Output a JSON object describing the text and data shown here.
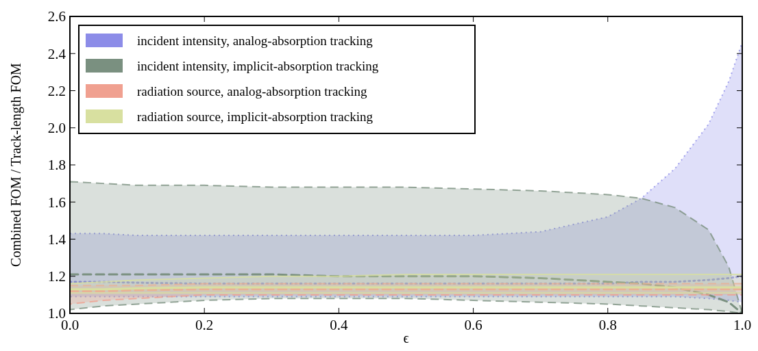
{
  "chart_data": {
    "type": "line",
    "xlabel": "ϵ",
    "ylabel": "Combined FOM / Track-length FOM",
    "x": [
      0,
      0.05,
      0.1,
      0.2,
      0.3,
      0.4,
      0.5,
      0.6,
      0.7,
      0.8,
      0.85,
      0.9,
      0.95,
      0.98,
      1.0
    ],
    "xlim": [
      0,
      1
    ],
    "ylim": [
      1,
      2.6
    ],
    "xticks": [
      {
        "value": 0,
        "label": "0.0"
      },
      0.2,
      0.4,
      0.6,
      0.8,
      {
        "value": 1,
        "label": "1.0"
      }
    ],
    "yticks": [
      {
        "value": 1,
        "label": "1.0"
      },
      1.2,
      1.4,
      1.6,
      1.8,
      {
        "value": 2,
        "label": "2.0"
      },
      2.2,
      2.4,
      2.6
    ],
    "legend": "top left",
    "grid": false,
    "series": [
      {
        "name": "incident intensity, analog-absorption tracking",
        "color": "#8c8ce8",
        "line_style": "dotted",
        "values": [
          1.17,
          1.17,
          1.165,
          1.16,
          1.16,
          1.16,
          1.16,
          1.16,
          1.16,
          1.16,
          1.17,
          1.17,
          1.18,
          1.19,
          1.2
        ],
        "upper": [
          1.43,
          1.43,
          1.42,
          1.42,
          1.42,
          1.42,
          1.42,
          1.42,
          1.44,
          1.52,
          1.62,
          1.78,
          2.02,
          2.25,
          2.46
        ],
        "lower": [
          1.09,
          1.09,
          1.09,
          1.09,
          1.09,
          1.09,
          1.09,
          1.09,
          1.09,
          1.09,
          1.09,
          1.09,
          1.08,
          1.07,
          1.06
        ]
      },
      {
        "name": "incident intensity, implicit-absorption tracking",
        "color": "#7a9080",
        "line_style": "dashed",
        "values": [
          1.21,
          1.21,
          1.21,
          1.21,
          1.21,
          1.2,
          1.2,
          1.2,
          1.19,
          1.17,
          1.16,
          1.14,
          1.1,
          1.06,
          1.0
        ],
        "upper": [
          1.71,
          1.7,
          1.69,
          1.69,
          1.68,
          1.68,
          1.68,
          1.67,
          1.66,
          1.64,
          1.62,
          1.57,
          1.45,
          1.25,
          1.0
        ],
        "lower": [
          1.02,
          1.04,
          1.05,
          1.07,
          1.08,
          1.08,
          1.08,
          1.07,
          1.06,
          1.05,
          1.04,
          1.03,
          1.02,
          1.01,
          1.0
        ]
      },
      {
        "name": "radiation source, analog-absorption tracking",
        "color": "#f0a090",
        "line_style": "dashed",
        "values": [
          1.12,
          1.12,
          1.125,
          1.13,
          1.13,
          1.13,
          1.13,
          1.13,
          1.13,
          1.13,
          1.13,
          1.13,
          1.13,
          1.13,
          1.13
        ],
        "upper": [
          1.15,
          1.15,
          1.15,
          1.16,
          1.16,
          1.16,
          1.16,
          1.16,
          1.16,
          1.16,
          1.16,
          1.16,
          1.16,
          1.16,
          1.16
        ],
        "lower": [
          1.05,
          1.07,
          1.08,
          1.1,
          1.1,
          1.1,
          1.1,
          1.1,
          1.1,
          1.1,
          1.1,
          1.1,
          1.1,
          1.1,
          1.1
        ]
      },
      {
        "name": "radiation source, implicit-absorption tracking",
        "color": "#d8e0a0",
        "line_style": "solid",
        "values": [
          1.13,
          1.13,
          1.135,
          1.14,
          1.14,
          1.14,
          1.14,
          1.14,
          1.14,
          1.14,
          1.14,
          1.14,
          1.14,
          1.14,
          1.14
        ],
        "upper": [
          1.16,
          1.17,
          1.18,
          1.19,
          1.2,
          1.2,
          1.21,
          1.21,
          1.21,
          1.21,
          1.21,
          1.21,
          1.21,
          1.21,
          1.21
        ],
        "lower": [
          1.11,
          1.11,
          1.11,
          1.11,
          1.11,
          1.11,
          1.11,
          1.11,
          1.11,
          1.11,
          1.11,
          1.11,
          1.11,
          1.11,
          1.11
        ]
      }
    ]
  }
}
